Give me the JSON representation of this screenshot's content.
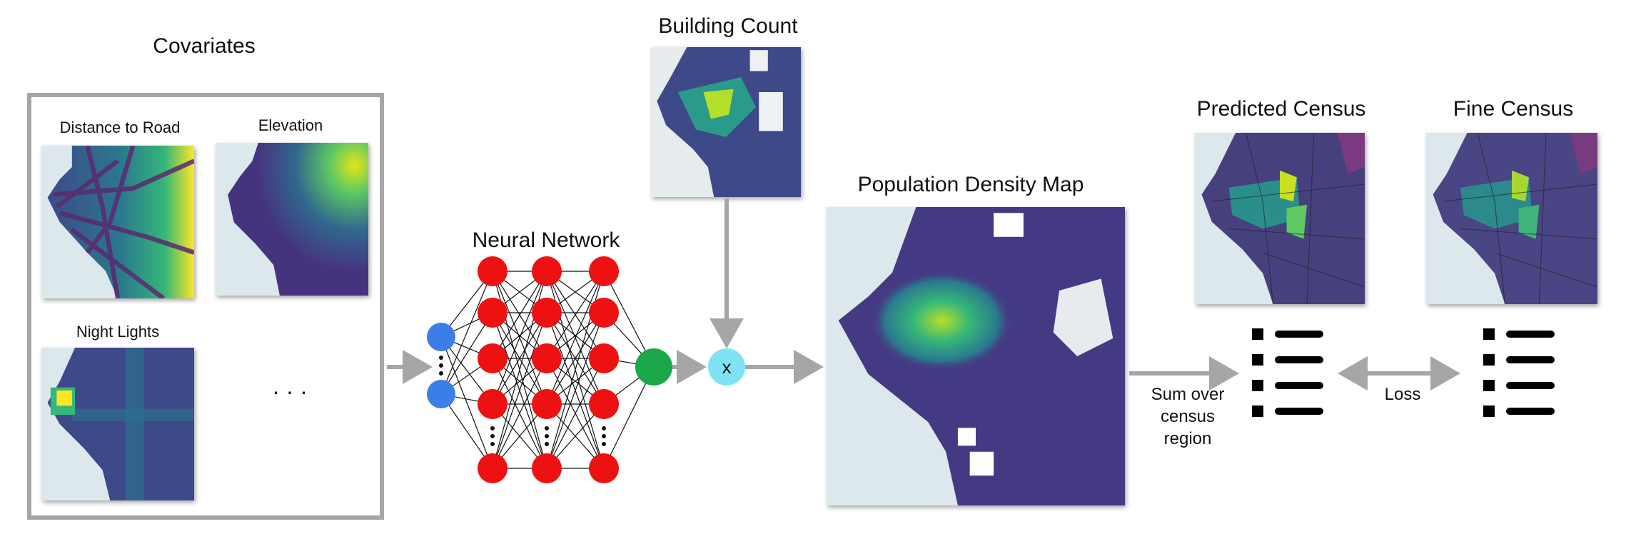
{
  "covariates": {
    "title": "Covariates",
    "panels": [
      {
        "label": "Distance to Road"
      },
      {
        "label": "Elevation"
      },
      {
        "label": "Night Lights"
      }
    ],
    "ellipsis": "· · ·"
  },
  "neural_network": {
    "title": "Neural Network",
    "input_color": "#3b7ee8",
    "hidden_color": "#ee1111",
    "output_color": "#1aa84a"
  },
  "building_count": {
    "title": "Building Count"
  },
  "multiply": {
    "symbol": "x",
    "color": "#7fe3f5"
  },
  "population_density": {
    "title": "Population Density Map"
  },
  "sum_label": "Sum over\ncensus\nregion",
  "predicted_census": {
    "title": "Predicted Census"
  },
  "fine_census": {
    "title": "Fine Census"
  },
  "loss_label": "Loss",
  "colors": {
    "arrow": "#a6a6a6",
    "ocean": "#dce8ec",
    "density_low": "#443a83",
    "density_high": "#d7e219"
  }
}
